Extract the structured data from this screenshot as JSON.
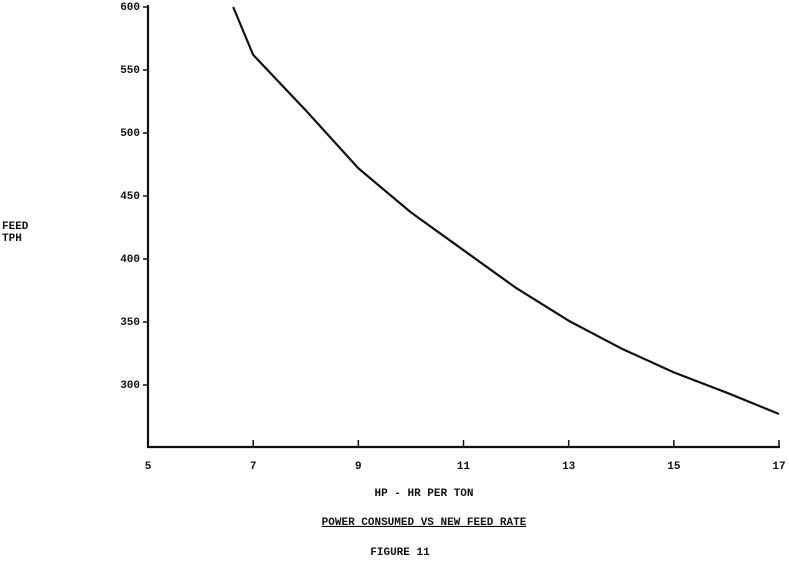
{
  "chart_data": {
    "type": "line",
    "title": "POWER CONSUMED VS NEW FEED RATE",
    "caption": "FIGURE 11",
    "xlabel": "HP - HR PER TON",
    "ylabel": [
      "FEED",
      "TPH"
    ],
    "x": [
      6.62,
      7,
      8,
      9,
      10,
      11,
      12,
      13,
      14,
      15,
      16,
      17
    ],
    "series": [
      {
        "color": "#111111",
        "values": [
          600,
          562,
          518,
          472,
          437,
          407,
          377,
          351,
          329,
          310,
          294,
          277
        ]
      }
    ],
    "xlim": [
      5,
      17
    ],
    "xticks": [
      5,
      7,
      9,
      11,
      13,
      15,
      17
    ],
    "ylim": [
      250,
      600
    ],
    "yticks": [
      300,
      350,
      400,
      450,
      500,
      550,
      600
    ]
  }
}
